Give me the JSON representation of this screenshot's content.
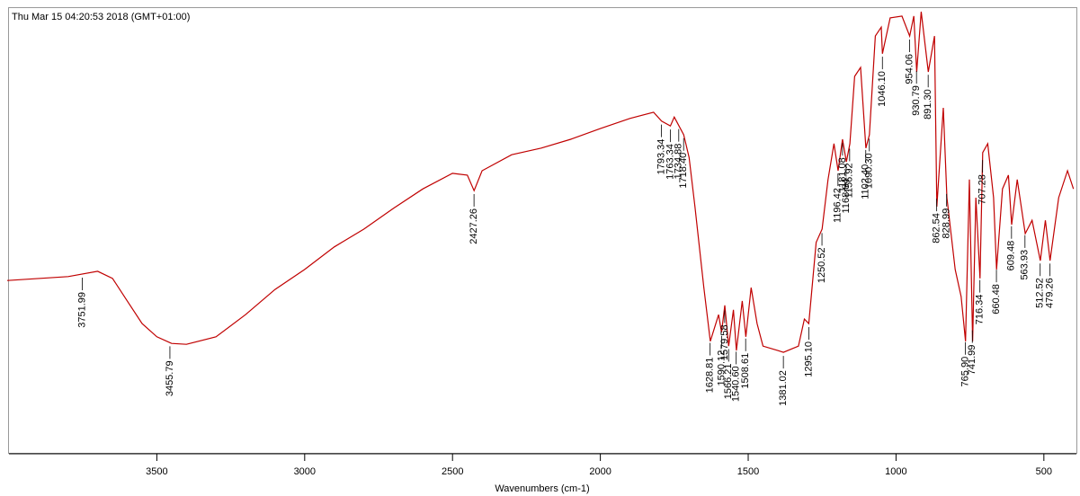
{
  "chart_data": {
    "type": "line",
    "title": "Thu Mar 15 04:20:53 2018 (GMT+01:00)",
    "x_label": "Wavenumbers (cm-1)",
    "xlim": [
      4000,
      390
    ],
    "xticks": [
      3500,
      3000,
      2500,
      2000,
      1500,
      1000,
      500
    ],
    "ylim": [
      0,
      100
    ],
    "series": [
      {
        "color": "#c00000",
        "x": [
          4006,
          3800,
          3700,
          3650,
          3600,
          3550,
          3500,
          3450,
          3400,
          3300,
          3200,
          3100,
          3000,
          2900,
          2800,
          2700,
          2600,
          2500,
          2450,
          2427,
          2400,
          2300,
          2200,
          2100,
          2000,
          1900,
          1820,
          1793,
          1763,
          1750,
          1718,
          1700,
          1680,
          1650,
          1628,
          1600,
          1590,
          1579,
          1566,
          1550,
          1540,
          1520,
          1508,
          1490,
          1470,
          1450,
          1400,
          1381,
          1330,
          1310,
          1295,
          1270,
          1250,
          1230,
          1210,
          1196,
          1181,
          1168,
          1156,
          1140,
          1120,
          1102,
          1090,
          1070,
          1050,
          1046,
          1020,
          980,
          954,
          940,
          930,
          915,
          891,
          870,
          862,
          840,
          828,
          800,
          780,
          765,
          752,
          741,
          730,
          716,
          707,
          690,
          670,
          660,
          640,
          620,
          609,
          590,
          563,
          540,
          512,
          495,
          479,
          450,
          420,
          400
        ],
        "values": [
          39.1,
          40.0,
          41.2,
          39.6,
          34.5,
          29.4,
          26.4,
          24.9,
          24.7,
          26.4,
          31.4,
          37.1,
          41.6,
          46.7,
          50.7,
          55.4,
          59.8,
          63.3,
          62.9,
          59.4,
          63.9,
          67.5,
          69.0,
          71.0,
          73.4,
          75.7,
          77.1,
          75.1,
          74.0,
          76.0,
          72.0,
          66.9,
          55.8,
          37.5,
          25.4,
          31.4,
          27.4,
          33.5,
          24.3,
          32.5,
          23.3,
          34.5,
          26.4,
          37.5,
          29.4,
          24.3,
          23.3,
          22.9,
          24.3,
          30.4,
          29.4,
          47.7,
          50.7,
          61.9,
          70.0,
          63.9,
          71.0,
          65.9,
          70.0,
          85.2,
          87.2,
          69.0,
          72.0,
          94.3,
          96.3,
          90.3,
          98.4,
          98.8,
          94.3,
          98.8,
          86.2,
          99.8,
          86.2,
          94.3,
          55.8,
          78.1,
          57.8,
          41.6,
          35.5,
          25.4,
          61.9,
          25.4,
          57.8,
          39.6,
          68.0,
          70.0,
          57.8,
          41.6,
          59.8,
          62.9,
          51.7,
          61.9,
          49.7,
          52.7,
          43.6,
          52.7,
          43.6,
          57.8,
          63.9,
          59.8
        ]
      }
    ],
    "annotations": [
      {
        "x": 3751.99,
        "label": "3751.99"
      },
      {
        "x": 3455.79,
        "label": "3455.79"
      },
      {
        "x": 2427.26,
        "label": "2427.26"
      },
      {
        "x": 1793.34,
        "label": "1793.34"
      },
      {
        "x": 1763.34,
        "label": "1763.34"
      },
      {
        "x": 1734.88,
        "label": "1734.88"
      },
      {
        "x": 1718.4,
        "label": "1718.40"
      },
      {
        "x": 1628.81,
        "label": "1628.81"
      },
      {
        "x": 1590.12,
        "label": "1590.12"
      },
      {
        "x": 1579.58,
        "label": "1579.58"
      },
      {
        "x": 1566.21,
        "label": "1566.21"
      },
      {
        "x": 1540.6,
        "label": "1540.60"
      },
      {
        "x": 1508.61,
        "label": "1508.61"
      },
      {
        "x": 1381.02,
        "label": "1381.02"
      },
      {
        "x": 1295.1,
        "label": "1295.10"
      },
      {
        "x": 1250.52,
        "label": "1250.52"
      },
      {
        "x": 1196.42,
        "label": "1196.42"
      },
      {
        "x": 1181.08,
        "label": "1181.08"
      },
      {
        "x": 1168.84,
        "label": "1168.84"
      },
      {
        "x": 1156.92,
        "label": "1156.92"
      },
      {
        "x": 1102.4,
        "label": "1102.40"
      },
      {
        "x": 1090.3,
        "label": "1090.30"
      },
      {
        "x": 1046.1,
        "label": "1046.10"
      },
      {
        "x": 954.06,
        "label": "954.06"
      },
      {
        "x": 930.79,
        "label": "930.79"
      },
      {
        "x": 891.3,
        "label": "891.30"
      },
      {
        "x": 862.54,
        "label": "862.54"
      },
      {
        "x": 828.99,
        "label": "828.99"
      },
      {
        "x": 765.9,
        "label": "765.90"
      },
      {
        "x": 741.99,
        "label": "741.99"
      },
      {
        "x": 716.34,
        "label": "716.34"
      },
      {
        "x": 707.28,
        "label": "707.28"
      },
      {
        "x": 660.48,
        "label": "660.48"
      },
      {
        "x": 609.48,
        "label": "609.48"
      },
      {
        "x": 563.93,
        "label": "563.93"
      },
      {
        "x": 512.52,
        "label": "512.52"
      },
      {
        "x": 479.26,
        "label": "479.26"
      }
    ]
  }
}
